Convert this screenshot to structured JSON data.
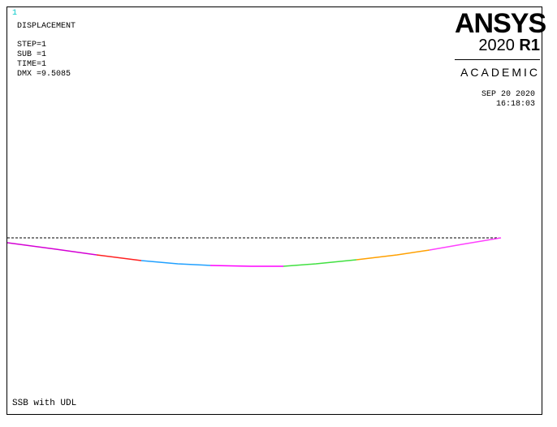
{
  "window": {
    "number": "1"
  },
  "header": {
    "title": "DISPLACEMENT"
  },
  "info": [
    "STEP=1",
    "SUB =1",
    "TIME=1",
    "DMX =9.5085"
  ],
  "logo": {
    "brand": "ANSYS",
    "version_year": "2020",
    "version_release": "R1",
    "edition": "ACADEMIC"
  },
  "stamp": {
    "date": "SEP 20 2020",
    "time": "16:18:03"
  },
  "footer": {
    "title": "SSB with UDL"
  },
  "colors": {
    "undeformed": "#000000",
    "bands": [
      "#d400d4",
      "#ff2020",
      "#20a0ff",
      "#ff00ff",
      "#40e040",
      "#ffa000",
      "#ff40ff"
    ]
  }
}
